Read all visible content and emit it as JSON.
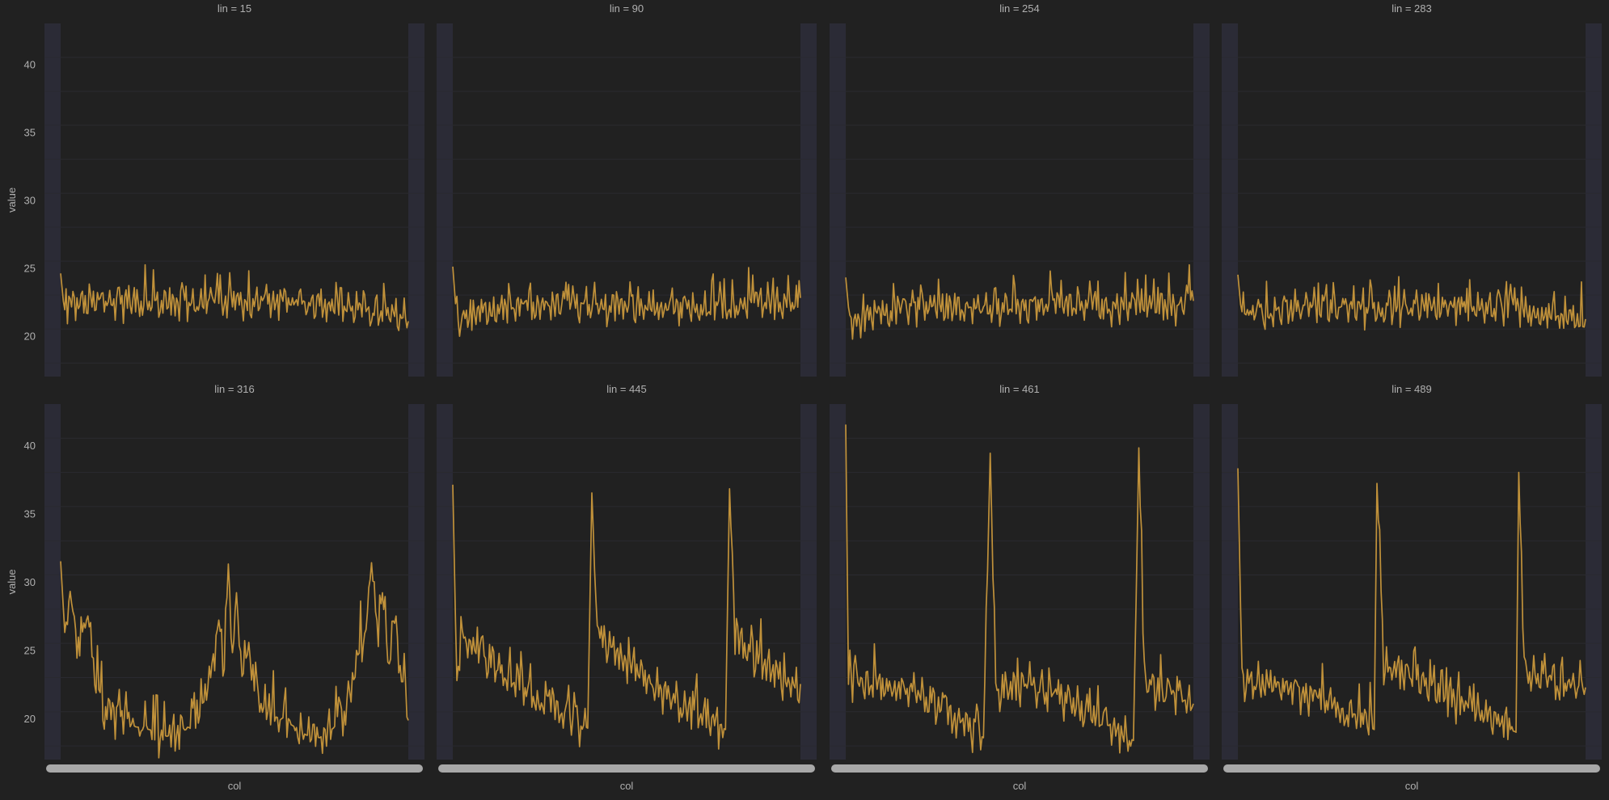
{
  "theme": {
    "background": "#212121",
    "panel": "#212121",
    "band": "#2b2b36",
    "grid": "#2a2a30",
    "line": "#c0913a",
    "text": "#b0b0b0",
    "tick_strip": "#a8a8a8"
  },
  "chart_data": {
    "type": "line",
    "layout": "facet-grid",
    "facet_variable": "lin",
    "xlabel": "col",
    "ylabel": "value",
    "ylim": [
      17,
      43
    ],
    "yticks": [
      20,
      25,
      30,
      35,
      40
    ],
    "grid": true,
    "x_range": [
      0,
      255
    ],
    "panels": [
      {
        "title": "lin = 15",
        "kind": "flat",
        "keypoints": [
          [
            0,
            24.6
          ],
          [
            3,
            21.5
          ],
          [
            10,
            22.4
          ],
          [
            50,
            22.5
          ],
          [
            100,
            22.3
          ],
          [
            150,
            22.4
          ],
          [
            200,
            22.3
          ],
          [
            255,
            21.3
          ]
        ],
        "values": [
          24.6,
          21.8,
          21.2,
          22.9,
          21.3,
          23.4,
          21.1,
          22.6,
          21.7,
          23.7,
          21.2,
          22.8,
          21.5,
          24.0,
          21.3,
          22.6,
          21.8,
          23.8,
          21.2,
          22.5,
          21.4,
          23.5,
          21.6,
          24.1,
          21.2,
          22.7,
          21.5,
          23.8,
          21.3,
          22.4,
          21.8,
          24.5,
          21.4,
          22.9,
          21.5,
          23.6,
          21.2,
          23.1,
          21.6,
          23.8,
          21.5,
          22.6,
          21.3,
          23.9,
          21.2,
          21.3
        ]
      },
      {
        "title": "lin = 90",
        "kind": "flat",
        "keypoints": [
          [
            0,
            25.1
          ],
          [
            3,
            21.0
          ],
          [
            50,
            22.0
          ],
          [
            100,
            22.2
          ],
          [
            150,
            21.9
          ],
          [
            200,
            22.0
          ],
          [
            255,
            22.7
          ]
        ],
        "values": [
          25.1,
          20.8,
          24.5,
          20.4,
          23.9,
          21.2,
          24.7,
          20.6,
          23.6,
          21.0,
          25.0,
          20.5,
          24.2,
          20.8,
          24.9,
          20.6,
          23.8,
          21.1,
          24.8,
          20.4,
          24.3,
          20.9,
          25.1,
          20.3,
          23.7,
          21.0,
          24.6,
          20.7,
          23.9,
          21.3,
          24.8,
          20.5,
          23.5,
          21.0,
          24.4,
          20.8,
          22.7
        ]
      },
      {
        "title": "lin = 254",
        "kind": "flat",
        "keypoints": [
          [
            0,
            24.3
          ],
          [
            3,
            21.0
          ],
          [
            50,
            22.2
          ],
          [
            100,
            22.0
          ],
          [
            150,
            22.2
          ],
          [
            200,
            22.1
          ],
          [
            255,
            22.3
          ]
        ],
        "values": [
          24.3,
          21.0,
          23.9,
          20.9,
          24.0,
          21.1,
          23.8,
          21.0,
          24.1,
          20.9,
          23.9,
          21.1,
          24.0,
          20.8,
          23.7,
          21.0,
          24.2,
          20.9,
          23.8,
          21.1,
          24.0,
          21.0,
          23.9,
          20.9,
          24.1,
          21.0,
          23.8,
          21.1,
          24.0,
          21.0,
          24.2,
          20.9,
          22.3
        ]
      },
      {
        "title": "lin = 283",
        "kind": "flat",
        "keypoints": [
          [
            0,
            24.5
          ],
          [
            3,
            21.2
          ],
          [
            50,
            22.2
          ],
          [
            100,
            21.9
          ],
          [
            150,
            22.1
          ],
          [
            200,
            22.0
          ],
          [
            255,
            21.1
          ]
        ],
        "values": [
          24.5,
          21.3,
          23.2,
          20.9,
          22.7,
          21.4,
          23.1,
          21.0,
          23.6,
          21.5,
          24.3,
          21.2,
          22.8,
          21.0,
          23.4,
          21.3,
          22.9,
          21.1,
          24.5,
          21.2,
          23.8,
          21.0,
          23.3,
          21.4,
          22.9,
          20.9,
          23.5,
          21.2,
          22.8,
          21.1
        ]
      },
      {
        "title": "lin = 316",
        "kind": "wave",
        "keypoints": [
          [
            0,
            31.5
          ],
          [
            3,
            26.3
          ],
          [
            7,
            29.3
          ],
          [
            12,
            25.1
          ],
          [
            20,
            27.5
          ],
          [
            25,
            23.5
          ],
          [
            32,
            20.5
          ],
          [
            45,
            20.0
          ],
          [
            55,
            19.4
          ],
          [
            65,
            19.2
          ],
          [
            78,
            18.7
          ],
          [
            92,
            19.2
          ],
          [
            100,
            20.5
          ],
          [
            106,
            22.0
          ],
          [
            112,
            24.5
          ],
          [
            116,
            27.2
          ],
          [
            120,
            23.9
          ],
          [
            123,
            31.3
          ],
          [
            126,
            25.3
          ],
          [
            129,
            29.2
          ],
          [
            132,
            24.2
          ],
          [
            138,
            25.0
          ],
          [
            144,
            21.8
          ],
          [
            150,
            20.5
          ],
          [
            160,
            20.0
          ],
          [
            170,
            19.5
          ],
          [
            180,
            18.8
          ],
          [
            190,
            18.6
          ],
          [
            200,
            19.3
          ],
          [
            210,
            20.5
          ],
          [
            218,
            24.8
          ],
          [
            224,
            26.5
          ],
          [
            228,
            31.4
          ],
          [
            232,
            26.0
          ],
          [
            236,
            29.2
          ],
          [
            240,
            24.3
          ],
          [
            246,
            27.5
          ],
          [
            250,
            21.5
          ],
          [
            252,
            24.0
          ],
          [
            255,
            20.0
          ]
        ],
        "values": [
          31.5,
          26.3,
          29.3,
          25.1,
          27.5,
          23.5,
          20.5,
          20.0,
          19.4,
          19.2,
          18.7,
          19.2,
          20.5,
          22.0,
          24.5,
          27.2,
          23.9,
          31.3,
          25.3,
          29.2,
          24.2,
          25.0,
          21.8,
          20.5,
          20.0,
          19.5,
          18.8,
          18.6,
          19.3,
          20.5,
          24.8,
          26.5,
          31.4,
          26.0,
          29.2,
          24.3,
          27.5,
          21.5,
          24.0,
          20.0
        ]
      },
      {
        "title": "lin = 445",
        "kind": "spiky",
        "keypoints": [
          [
            0,
            37.1
          ],
          [
            3,
            22.0
          ],
          [
            6,
            25.8
          ],
          [
            50,
            22.2
          ],
          [
            99,
            19.3
          ],
          [
            102,
            36.5
          ],
          [
            106,
            25.9
          ],
          [
            150,
            22.0
          ],
          [
            200,
            19.2
          ],
          [
            203,
            36.8
          ],
          [
            207,
            25.7
          ],
          [
            255,
            21.9
          ]
        ],
        "values": [
          37.1,
          22.0,
          25.8,
          21.4,
          24.6,
          20.9,
          24.3,
          21.2,
          25.4,
          20.7,
          23.8,
          21.0,
          19.3,
          36.5,
          25.9,
          21.8,
          24.1,
          20.6,
          23.7,
          21.3,
          24.8,
          20.9,
          23.5,
          21.2,
          19.2,
          36.8,
          25.7,
          21.5,
          24.0,
          20.8,
          24.9,
          21.1,
          21.9
        ]
      },
      {
        "title": "lin = 461",
        "kind": "spiky",
        "keypoints": [
          [
            0,
            41.5
          ],
          [
            2,
            22.5
          ],
          [
            50,
            22.0
          ],
          [
            101,
            18.6
          ],
          [
            106,
            39.4
          ],
          [
            110,
            22.3
          ],
          [
            150,
            22.0
          ],
          [
            211,
            18.4
          ],
          [
            215,
            39.8
          ],
          [
            219,
            22.5
          ],
          [
            255,
            20.9
          ]
        ],
        "values": [
          41.5,
          22.5,
          23.4,
          21.2,
          23.8,
          20.7,
          24.3,
          21.0,
          23.5,
          20.9,
          22.9,
          21.3,
          18.6,
          39.4,
          22.3,
          23.9,
          21.0,
          24.2,
          20.8,
          23.6,
          21.2,
          23.1,
          20.9,
          22.6,
          18.4,
          39.8,
          22.5,
          23.4,
          21.1,
          22.8,
          20.9
        ]
      },
      {
        "title": "lin = 489",
        "kind": "spiky",
        "keypoints": [
          [
            0,
            38.3
          ],
          [
            3,
            22.8
          ],
          [
            50,
            21.8
          ],
          [
            100,
            19.2
          ],
          [
            102,
            37.2
          ],
          [
            107,
            23.9
          ],
          [
            150,
            22.0
          ],
          [
            204,
            19.0
          ],
          [
            206,
            38.0
          ],
          [
            210,
            23.5
          ],
          [
            255,
            21.9
          ]
        ],
        "values": [
          38.3,
          22.8,
          23.7,
          21.0,
          24.1,
          20.8,
          23.5,
          21.3,
          24.6,
          20.9,
          23.3,
          21.2,
          19.2,
          37.2,
          23.9,
          24.2,
          21.1,
          23.8,
          20.8,
          24.4,
          21.0,
          23.6,
          20.9,
          23.4,
          19.0,
          38.0,
          23.5,
          24.0,
          21.2,
          23.7,
          20.9,
          21.9
        ]
      }
    ]
  }
}
